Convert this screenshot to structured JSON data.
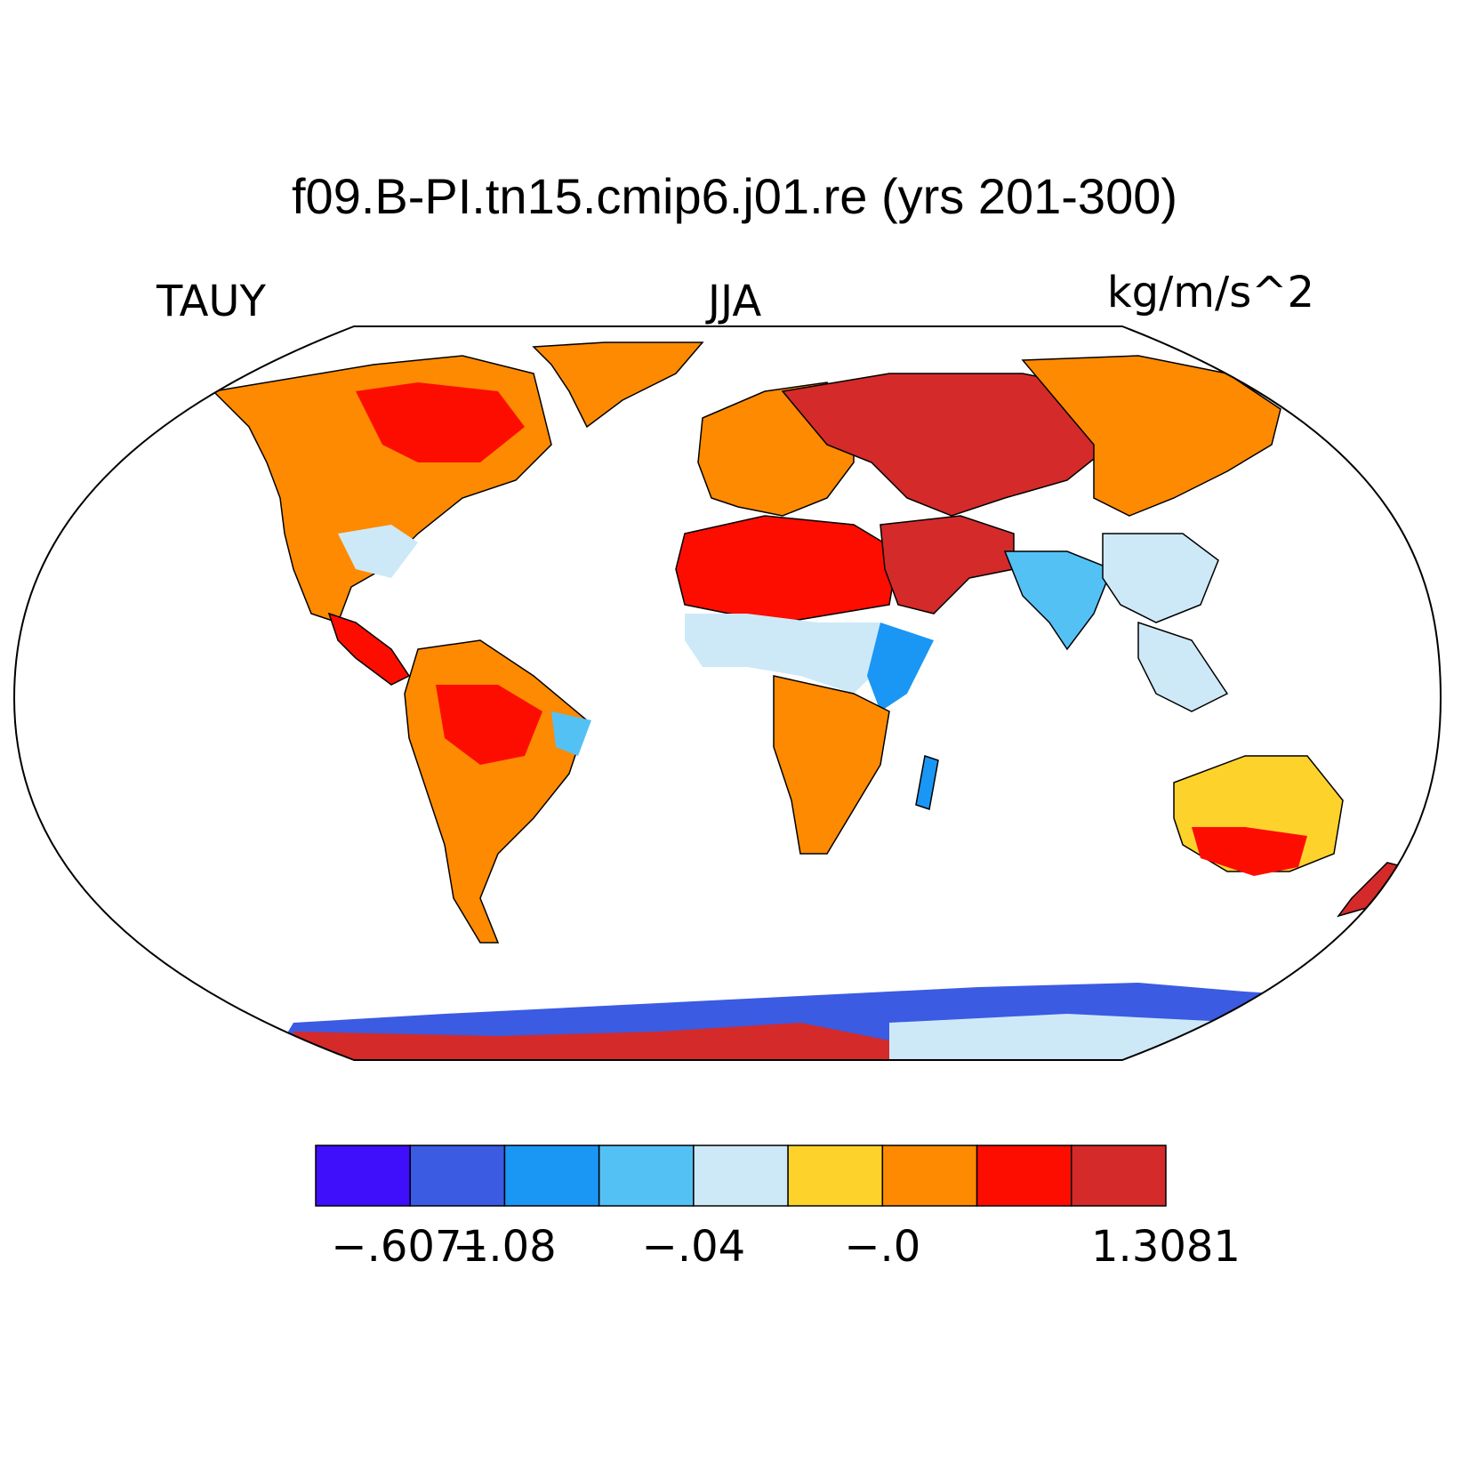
{
  "title": "f09.B-PI.tn15.cmip6.j01.re (yrs 201-300)",
  "left_label": "TAUY",
  "center_label": "JJA",
  "right_label": "kg/m/s^2",
  "colorbar": {
    "colors": [
      "#3f0ffb",
      "#3b5be3",
      "#1a96f5",
      "#54c1f5",
      "#cde9f7",
      "#fdd22b",
      "#fd8a00",
      "#fd0d00",
      "#d42a2a"
    ],
    "labels": [
      {
        "text": "−.6071",
        "boundary": 1
      },
      {
        "text": "−.08",
        "boundary": 2
      },
      {
        "text": "−.04",
        "boundary": 4
      },
      {
        "text": "−.0",
        "boundary": 6
      },
      {
        "text": "1.3081",
        "boundary": 9
      }
    ]
  },
  "projection": "Robinson",
  "land_color_classes": {
    "north_america": 6,
    "north_america_east": 7,
    "us_southeast": 4,
    "central_america": 7,
    "greenland": 6,
    "south_america": 6,
    "south_america_core": 7,
    "brazil_east": 3,
    "europe": 6,
    "russia": 8,
    "siberia": 6,
    "sahara": 7,
    "sahel": 4,
    "east_africa": 2,
    "southern_africa": 6,
    "middle_east": 8,
    "south_asia": 3,
    "china_east": 4,
    "southeast_asia": 4,
    "australia": 5,
    "australia_south": 7,
    "new_zealand": 8,
    "madagascar": 2,
    "antarctica_east": 1,
    "antarctica_band": 8,
    "antarctica_mid": 4
  }
}
